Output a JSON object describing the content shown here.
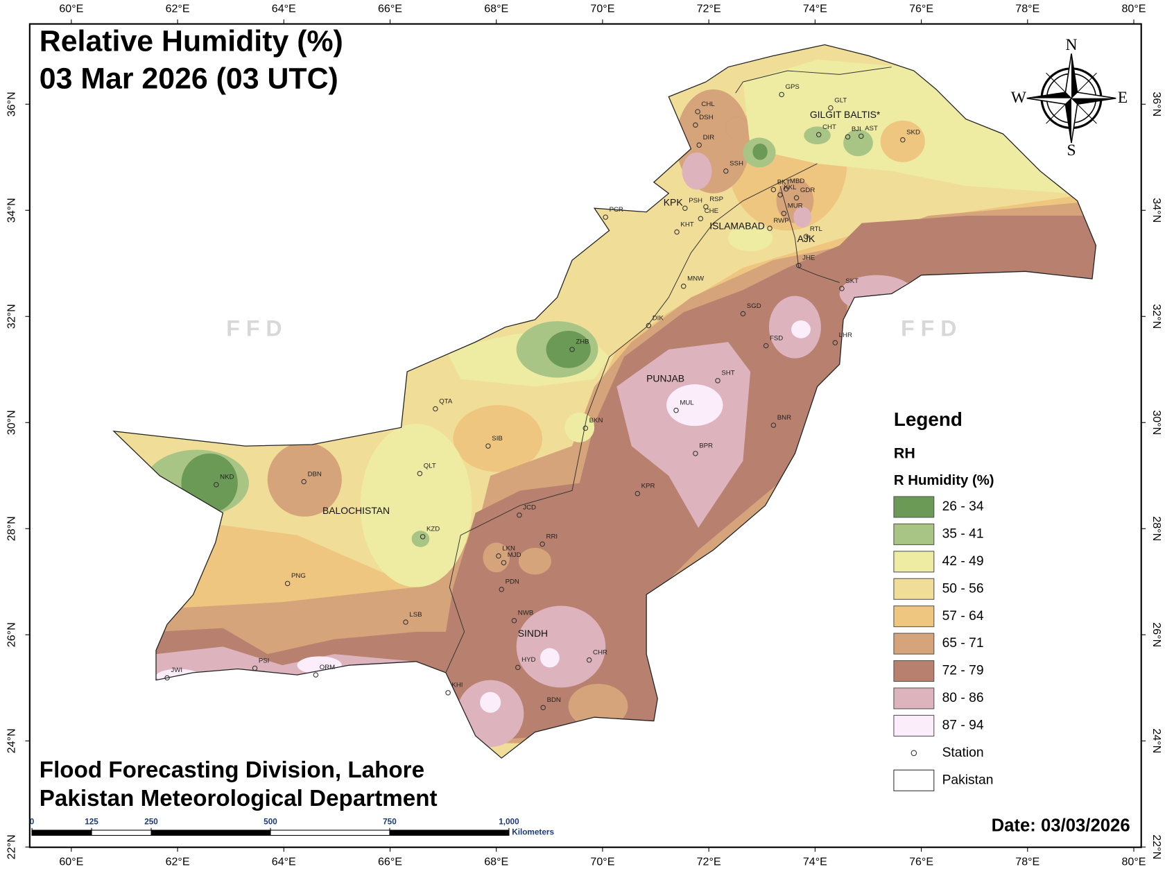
{
  "title": "Relative Humidity (%)",
  "subtitle": "03 Mar 2026  (03 UTC)",
  "credits": [
    "Flood Forecasting Division, Lahore",
    "Pakistan Meteorological Department"
  ],
  "date": "Date: 03/03/2026",
  "watermark": "F F D",
  "compass": {
    "n": "N",
    "s": "S",
    "e": "E",
    "w": "W"
  },
  "legend": {
    "title": "Legend",
    "layer": "RH",
    "field": "R Humidity (%)",
    "classes": [
      {
        "label": "26 - 34",
        "color": "#6a9a55"
      },
      {
        "label": "35 - 41",
        "color": "#a8c585"
      },
      {
        "label": "42 - 49",
        "color": "#eeeca3"
      },
      {
        "label": "50 - 56",
        "color": "#f0dd98"
      },
      {
        "label": "57 - 64",
        "color": "#efc67f"
      },
      {
        "label": "65 - 71",
        "color": "#d6a47a"
      },
      {
        "label": "72 - 79",
        "color": "#b8806e"
      },
      {
        "label": "80 - 86",
        "color": "#ddb3bd"
      },
      {
        "label": "87 - 94",
        "color": "#fbeefa"
      }
    ],
    "station": "Station",
    "boundary": "Pakistan"
  },
  "regions": [
    "GILGIT BALTIS*",
    "KPK",
    "ISLAMABAD",
    "AJK",
    "PUNJAB",
    "BALOCHISTAN",
    "SINDH"
  ],
  "stations": [
    "GPS",
    "GLT",
    "CHT",
    "BJI",
    "AST",
    "SKD",
    "CHL",
    "DSH",
    "DIR",
    "SSH",
    "BKT",
    "MBD",
    "KKL",
    "GDR",
    "MUR",
    "RWP",
    "PSH",
    "RSP",
    "CHE",
    "KHT",
    "PCR",
    "RTL",
    "JHE",
    "MNW",
    "SKT",
    "SGD",
    "DIK",
    "FSD",
    "LHR",
    "ZHB",
    "SHT",
    "QTA",
    "BKN",
    "MUL",
    "BNR",
    "SIB",
    "BPR",
    "QLT",
    "NKD",
    "DBN",
    "KPR",
    "JCD",
    "KZD",
    "RRI",
    "LKN",
    "MJD",
    "PDN",
    "PNG",
    "LSB",
    "NWB",
    "CHR",
    "PSI",
    "ORM",
    "HYD",
    "JWI",
    "KHI",
    "BDN"
  ],
  "lon_ticks": [
    {
      "value": 60,
      "label": "60°E"
    },
    {
      "value": 62,
      "label": "62°E"
    },
    {
      "value": 64,
      "label": "64°E"
    },
    {
      "value": 66,
      "label": "66°E"
    },
    {
      "value": 68,
      "label": "68°E"
    },
    {
      "value": 70,
      "label": "70°E"
    },
    {
      "value": 72,
      "label": "72°E"
    },
    {
      "value": 74,
      "label": "74°E"
    },
    {
      "value": 76,
      "label": "76°E"
    },
    {
      "value": 78,
      "label": "78°E"
    },
    {
      "value": 80,
      "label": "80°E"
    }
  ],
  "lat_ticks": [
    {
      "value": 22,
      "label": "22°N"
    },
    {
      "value": 24,
      "label": "24°N"
    },
    {
      "value": 26,
      "label": "26°N"
    },
    {
      "value": 28,
      "label": "28°N"
    },
    {
      "value": 30,
      "label": "30°N"
    },
    {
      "value": 32,
      "label": "32°N"
    },
    {
      "value": 34,
      "label": "34°N"
    },
    {
      "value": 36,
      "label": "36°N"
    }
  ],
  "scale_bar": {
    "ticks": [
      0,
      125,
      250,
      500,
      750,
      {
        "value": 1000,
        "label": "1,000"
      }
    ],
    "unit": "Kilometers"
  }
}
